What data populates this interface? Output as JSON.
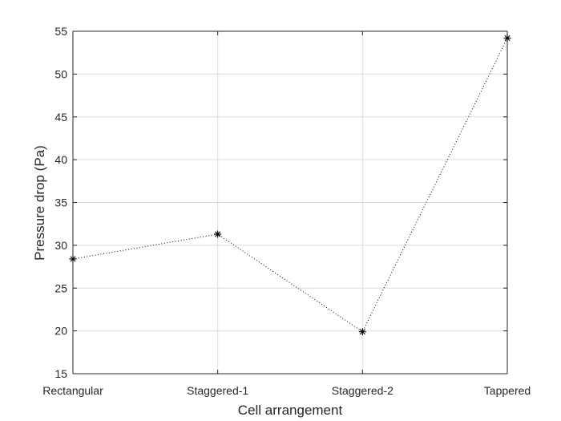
{
  "chart_data": {
    "type": "line",
    "title": "",
    "xlabel": "Cell arrangement",
    "ylabel": "Pressure drop (Pa)",
    "categories": [
      "Rectangular",
      "Staggered-1",
      "Staggered-2",
      "Tappered"
    ],
    "series": [
      {
        "values": [
          28.4,
          31.3,
          19.9,
          54.2
        ]
      }
    ],
    "ylim": [
      15,
      55
    ],
    "yticks": [
      15,
      20,
      25,
      30,
      35,
      40,
      45,
      50,
      55
    ],
    "grid": true,
    "line_style": "dotted",
    "marker": "asterisk",
    "colors": {
      "line": "#000000",
      "grid": "#dcdcdc",
      "axis": "#262626"
    }
  }
}
